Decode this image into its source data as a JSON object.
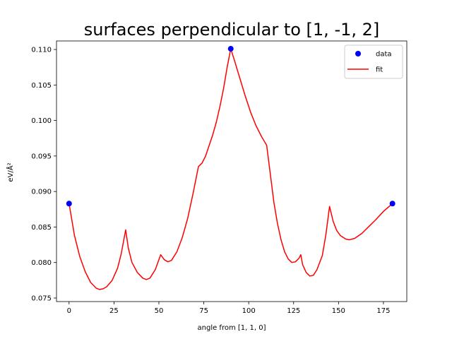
{
  "chart_data": {
    "type": "line",
    "title": "surfaces perpendicular to [1, -1, 2]",
    "xlabel": "angle from [1, 1, 0]",
    "ylabel": "eV/Å²",
    "xlim": [
      -7,
      188
    ],
    "ylim": [
      0.0745,
      0.1112
    ],
    "xticks": [
      0,
      25,
      50,
      75,
      100,
      125,
      150,
      175
    ],
    "yticks": [
      0.075,
      0.08,
      0.085,
      0.09,
      0.095,
      0.1,
      0.105,
      0.11
    ],
    "ytick_labels": [
      "0.075",
      "0.080",
      "0.085",
      "0.090",
      "0.095",
      "0.100",
      "0.105",
      "0.110"
    ],
    "legend_position": "top-right",
    "grid": false,
    "series": [
      {
        "name": "data",
        "kind": "scatter",
        "color": "#0000ff",
        "points": [
          [
            0,
            0.0883
          ],
          [
            90,
            0.1101
          ],
          [
            180,
            0.0883
          ]
        ]
      },
      {
        "name": "fit",
        "kind": "line",
        "color": "#ff0000",
        "points": [
          [
            0,
            0.0883
          ],
          [
            3,
            0.0838
          ],
          [
            6,
            0.0808
          ],
          [
            9,
            0.0787
          ],
          [
            12,
            0.0772
          ],
          [
            15,
            0.0764
          ],
          [
            17,
            0.0762
          ],
          [
            19,
            0.0763
          ],
          [
            21,
            0.0766
          ],
          [
            24,
            0.0775
          ],
          [
            27,
            0.0792
          ],
          [
            29,
            0.0812
          ],
          [
            31.5,
            0.0846
          ],
          [
            33,
            0.082
          ],
          [
            35,
            0.08
          ],
          [
            38,
            0.0786
          ],
          [
            41,
            0.0778
          ],
          [
            43,
            0.0776
          ],
          [
            45,
            0.0778
          ],
          [
            48,
            0.079
          ],
          [
            51,
            0.0811
          ],
          [
            53,
            0.0804
          ],
          [
            55,
            0.0801
          ],
          [
            57,
            0.0803
          ],
          [
            60,
            0.0815
          ],
          [
            63,
            0.0835
          ],
          [
            66,
            0.0862
          ],
          [
            69,
            0.0897
          ],
          [
            72,
            0.0935
          ],
          [
            74,
            0.094
          ],
          [
            76,
            0.095
          ],
          [
            78,
            0.0965
          ],
          [
            80,
            0.098
          ],
          [
            82,
            0.0998
          ],
          [
            84,
            0.102
          ],
          [
            86,
            0.1045
          ],
          [
            88,
            0.1075
          ],
          [
            90,
            0.1101
          ],
          [
            92,
            0.1085
          ],
          [
            95,
            0.106
          ],
          [
            98,
            0.1035
          ],
          [
            101,
            0.1012
          ],
          [
            104,
            0.0993
          ],
          [
            107,
            0.0978
          ],
          [
            110,
            0.0965
          ],
          [
            112,
            0.0925
          ],
          [
            114,
            0.0885
          ],
          [
            116,
            0.0855
          ],
          [
            118,
            0.0832
          ],
          [
            120,
            0.0815
          ],
          [
            122,
            0.0805
          ],
          [
            124,
            0.08
          ],
          [
            126,
            0.0801
          ],
          [
            128,
            0.0806
          ],
          [
            129,
            0.0811
          ],
          [
            130,
            0.0797
          ],
          [
            132,
            0.0786
          ],
          [
            134,
            0.0781
          ],
          [
            136,
            0.0782
          ],
          [
            138,
            0.079
          ],
          [
            141,
            0.081
          ],
          [
            143,
            0.084
          ],
          [
            145,
            0.0879
          ],
          [
            147,
            0.0858
          ],
          [
            149,
            0.0845
          ],
          [
            151,
            0.0838
          ],
          [
            154,
            0.0833
          ],
          [
            156,
            0.0832
          ],
          [
            159,
            0.0834
          ],
          [
            163,
            0.0841
          ],
          [
            167,
            0.0851
          ],
          [
            171,
            0.0861
          ],
          [
            175,
            0.0872
          ],
          [
            180,
            0.0883
          ]
        ]
      }
    ]
  }
}
